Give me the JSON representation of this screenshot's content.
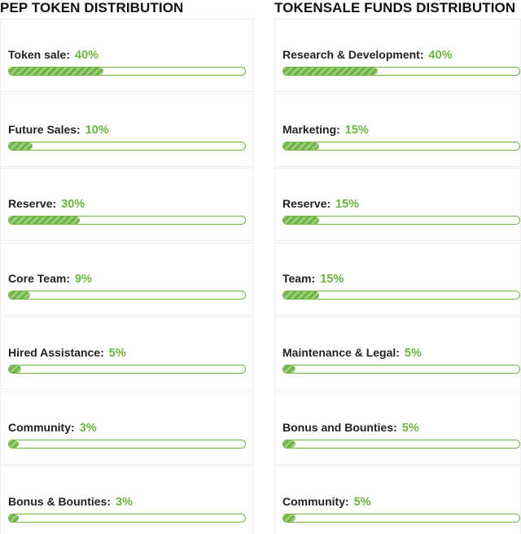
{
  "left": {
    "title": "PEP TOKEN DISTRIBUTION",
    "items": [
      {
        "name": "Token sale:",
        "pct": "40%",
        "value": 40
      },
      {
        "name": "Future Sales:",
        "pct": "10%",
        "value": 10
      },
      {
        "name": "Reserve:",
        "pct": "30%",
        "value": 30
      },
      {
        "name": "Core Team:",
        "pct": "9%",
        "value": 9
      },
      {
        "name": "Hired Assistance:",
        "pct": "5%",
        "value": 5
      },
      {
        "name": "Community:",
        "pct": "3%",
        "value": 3
      },
      {
        "name": "Bonus & Bounties:",
        "pct": "3%",
        "value": 3
      }
    ]
  },
  "right": {
    "title": "TOKENSALE FUNDS DISTRIBUTION",
    "items": [
      {
        "name": "Research & Development:",
        "pct": "40%",
        "value": 40
      },
      {
        "name": "Marketing:",
        "pct": "15%",
        "value": 15
      },
      {
        "name": "Reserve:",
        "pct": "15%",
        "value": 15
      },
      {
        "name": "Team:",
        "pct": "15%",
        "value": 15
      },
      {
        "name": "Maintenance & Legal:",
        "pct": "5%",
        "value": 5
      },
      {
        "name": "Bonus and Bounties:",
        "pct": "5%",
        "value": 5
      },
      {
        "name": "Community:",
        "pct": "5%",
        "value": 5
      }
    ]
  },
  "colors": {
    "accent": "#6cb33f",
    "text": "#222222",
    "card_border": "#eeeeee"
  }
}
